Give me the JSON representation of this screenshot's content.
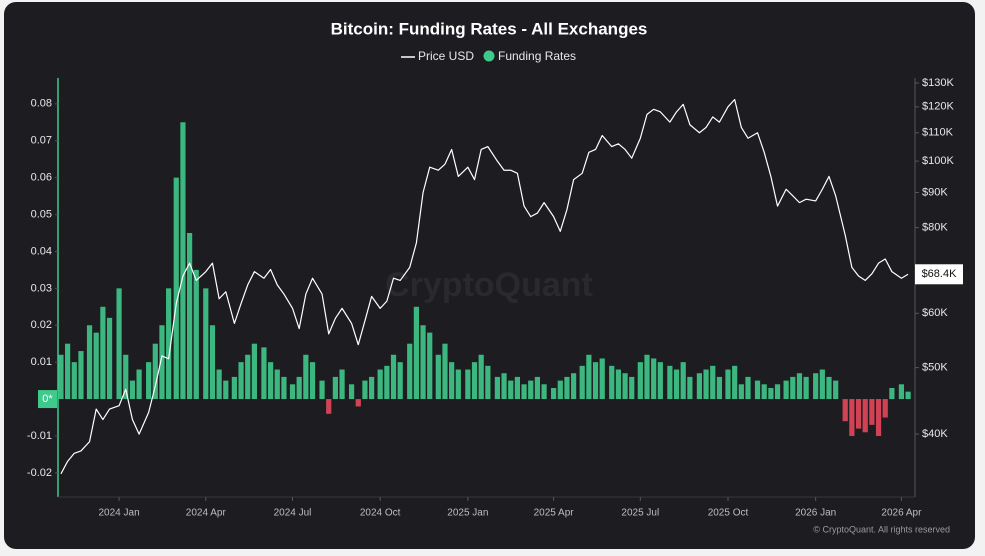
{
  "chart_data": {
    "type": "bar-line",
    "title": "Bitcoin: Funding Rates - All Exchanges",
    "watermark": "CryptoQuant",
    "copyright": "© CryptoQuant. All rights reserved",
    "x": [
      "2023-11-01",
      "2023-11-08",
      "2023-11-15",
      "2023-11-22",
      "2023-12-01",
      "2023-12-08",
      "2023-12-15",
      "2023-12-22",
      "2024-01-01",
      "2024-01-08",
      "2024-01-15",
      "2024-01-22",
      "2024-02-01",
      "2024-02-08",
      "2024-02-15",
      "2024-02-22",
      "2024-03-01",
      "2024-03-08",
      "2024-03-15",
      "2024-03-22",
      "2024-04-01",
      "2024-04-08",
      "2024-04-15",
      "2024-04-22",
      "2024-05-01",
      "2024-05-08",
      "2024-05-15",
      "2024-05-22",
      "2024-06-01",
      "2024-06-08",
      "2024-06-15",
      "2024-06-22",
      "2024-07-01",
      "2024-07-08",
      "2024-07-15",
      "2024-07-22",
      "2024-08-01",
      "2024-08-08",
      "2024-08-15",
      "2024-08-22",
      "2024-09-01",
      "2024-09-08",
      "2024-09-15",
      "2024-09-22",
      "2024-10-01",
      "2024-10-08",
      "2024-10-15",
      "2024-10-22",
      "2024-11-01",
      "2024-11-08",
      "2024-11-15",
      "2024-11-22",
      "2024-12-01",
      "2024-12-08",
      "2024-12-15",
      "2024-12-22",
      "2025-01-01",
      "2025-01-08",
      "2025-01-15",
      "2025-01-22",
      "2025-02-01",
      "2025-02-08",
      "2025-02-15",
      "2025-02-22",
      "2025-03-01",
      "2025-03-08",
      "2025-03-15",
      "2025-03-22",
      "2025-04-01",
      "2025-04-08",
      "2025-04-15",
      "2025-04-22",
      "2025-05-01",
      "2025-05-08",
      "2025-05-15",
      "2025-05-22",
      "2025-06-01",
      "2025-06-08",
      "2025-06-15",
      "2025-06-22",
      "2025-07-01",
      "2025-07-08",
      "2025-07-15",
      "2025-07-22",
      "2025-08-01",
      "2025-08-08",
      "2025-08-15",
      "2025-08-22",
      "2025-09-01",
      "2025-09-08",
      "2025-09-15",
      "2025-09-22",
      "2025-10-01",
      "2025-10-08",
      "2025-10-15",
      "2025-10-22",
      "2025-11-01",
      "2025-11-08",
      "2025-11-15",
      "2025-11-22",
      "2025-12-01",
      "2025-12-08",
      "2025-12-15",
      "2025-12-22",
      "2026-01-01",
      "2026-01-08",
      "2026-01-15",
      "2026-01-22",
      "2026-02-01",
      "2026-02-08",
      "2026-02-15",
      "2026-02-22",
      "2026-03-01",
      "2026-03-08",
      "2026-03-15",
      "2026-03-22",
      "2026-04-01",
      "2026-04-08"
    ],
    "series": [
      {
        "name": "Price USD",
        "type": "line",
        "color": "#ffffff",
        "axis": "y2",
        "values": [
          35000,
          36500,
          37500,
          37800,
          39000,
          43500,
          42000,
          43500,
          44000,
          46500,
          42000,
          40000,
          43000,
          47000,
          52000,
          51500,
          62000,
          68000,
          71000,
          67000,
          69000,
          71000,
          63000,
          64500,
          58000,
          62000,
          66000,
          69000,
          67500,
          69500,
          66000,
          64000,
          61000,
          57000,
          64000,
          67500,
          64000,
          56000,
          59000,
          61000,
          58000,
          54000,
          58500,
          63500,
          61000,
          62500,
          67500,
          67000,
          70000,
          76000,
          90000,
          98000,
          97000,
          99000,
          104000,
          95000,
          98000,
          94000,
          104000,
          105000,
          100000,
          97000,
          97000,
          96000,
          86000,
          83000,
          84000,
          87000,
          83000,
          79000,
          85000,
          94000,
          96000,
          103000,
          104000,
          109000,
          105000,
          106000,
          104000,
          101000,
          108000,
          117000,
          119000,
          118000,
          114000,
          118000,
          121000,
          113000,
          110000,
          112000,
          116000,
          114000,
          120000,
          123000,
          112000,
          108000,
          110000,
          103000,
          95000,
          86000,
          91000,
          89000,
          87000,
          88000,
          87500,
          91000,
          95000,
          89000,
          78000,
          70000,
          68000,
          67000,
          68500,
          71000,
          72000,
          69000,
          67500,
          68400
        ]
      },
      {
        "name": "Funding Rates",
        "type": "bar",
        "color": "#3fc98a",
        "negative_color": "#e5485a",
        "values": [
          0.012,
          0.015,
          0.01,
          0.013,
          0.02,
          0.018,
          0.025,
          0.022,
          0.03,
          0.012,
          0.005,
          0.008,
          0.01,
          0.015,
          0.02,
          0.03,
          0.06,
          0.075,
          0.045,
          0.035,
          0.03,
          0.02,
          0.008,
          0.005,
          0.006,
          0.01,
          0.012,
          0.015,
          0.014,
          0.01,
          0.008,
          0.006,
          0.004,
          0.006,
          0.012,
          0.01,
          0.005,
          -0.004,
          0.006,
          0.008,
          0.004,
          -0.002,
          0.005,
          0.006,
          0.008,
          0.009,
          0.012,
          0.01,
          0.015,
          0.025,
          0.02,
          0.018,
          0.012,
          0.015,
          0.01,
          0.008,
          0.008,
          0.01,
          0.012,
          0.009,
          0.006,
          0.007,
          0.005,
          0.006,
          0.004,
          0.005,
          0.006,
          0.004,
          0.003,
          0.005,
          0.006,
          0.007,
          0.009,
          0.012,
          0.01,
          0.011,
          0.009,
          0.008,
          0.007,
          0.006,
          0.01,
          0.012,
          0.011,
          0.01,
          0.009,
          0.008,
          0.01,
          0.006,
          0.007,
          0.008,
          0.009,
          0.006,
          0.008,
          0.009,
          0.004,
          0.006,
          0.005,
          0.004,
          0.003,
          0.004,
          0.005,
          0.006,
          0.007,
          0.006,
          0.007,
          0.008,
          0.006,
          0.005,
          -0.006,
          -0.01,
          -0.008,
          -0.009,
          -0.007,
          -0.01,
          -0.005,
          0.003,
          0.004,
          0.002
        ]
      }
    ],
    "xlim": [
      "2023-10-31",
      "2026-04-10"
    ],
    "xticks": [
      {
        "value": "2024-01-01",
        "label": "2024 Jan"
      },
      {
        "value": "2024-04-01",
        "label": "2024 Apr"
      },
      {
        "value": "2024-07-01",
        "label": "2024 Jul"
      },
      {
        "value": "2024-10-01",
        "label": "2024 Oct"
      },
      {
        "value": "2025-01-01",
        "label": "2025 Jan"
      },
      {
        "value": "2025-04-01",
        "label": "2025 Apr"
      },
      {
        "value": "2025-07-01",
        "label": "2025 Jul"
      },
      {
        "value": "2025-10-01",
        "label": "2025 Oct"
      },
      {
        "value": "2026-01-01",
        "label": "2026 Jan"
      },
      {
        "value": "2026-04-01",
        "label": "2026 Apr"
      }
    ],
    "ylim": [
      -0.026,
      0.087
    ],
    "yticks": [
      -0.02,
      -0.01,
      {
        "value": 0,
        "label": "0*"
      },
      0.01,
      0.02,
      0.03,
      0.04,
      0.05,
      0.06,
      0.07,
      0.08
    ],
    "y2lim": [
      32600,
      132200
    ],
    "y2_log": true,
    "y2ticks": [
      {
        "value": 40000,
        "label": "$40K"
      },
      {
        "value": 50000,
        "label": "$50K"
      },
      {
        "value": 60000,
        "label": "$60K"
      },
      {
        "value": 80000,
        "label": "$80K"
      },
      {
        "value": 90000,
        "label": "$90K"
      },
      {
        "value": 100000,
        "label": "$100K"
      },
      {
        "value": 110000,
        "label": "$110K"
      },
      {
        "value": 120000,
        "label": "$120K"
      },
      {
        "value": 130000,
        "label": "$130K"
      }
    ],
    "price_marker": {
      "value": 68400,
      "label": "$68.4K"
    },
    "grid": false
  }
}
